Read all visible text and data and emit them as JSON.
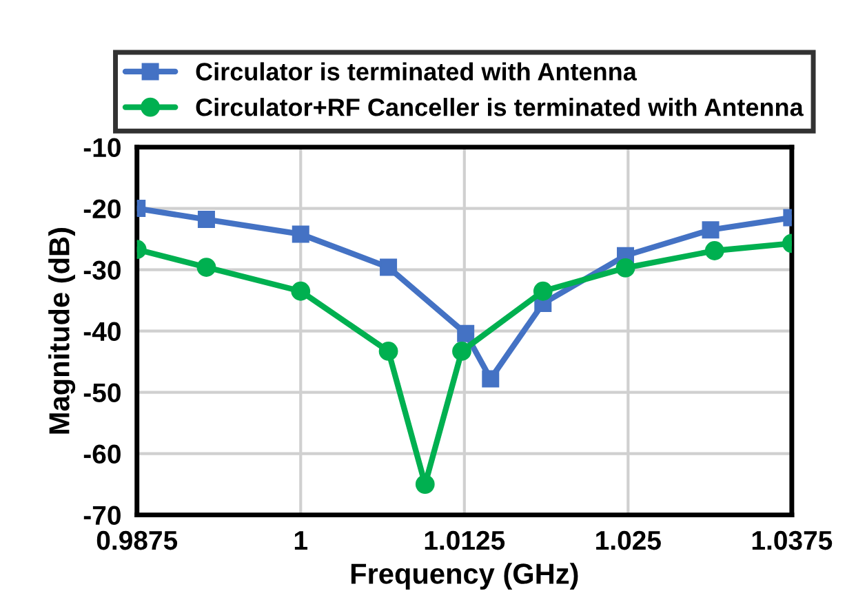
{
  "chart_data": {
    "type": "line",
    "xlabel": "Frequency (GHz)",
    "ylabel": "Magnitude (dB)",
    "series": [
      {
        "name": "Circulator is terminated with Antenna",
        "color": "#4472c4",
        "marker": "square",
        "x": [
          0.9875,
          0.9928,
          1.0,
          1.0067,
          1.0126,
          1.0145,
          1.0185,
          1.0248,
          1.0313,
          1.0375
        ],
        "values": [
          -20,
          -21.8,
          -24.2,
          -29.6,
          -40.4,
          -47.8,
          -35.5,
          -27.7,
          -23.5,
          -21.5
        ]
      },
      {
        "name": "Circulator+RF Canceller is terminated with Antenna",
        "color": "#00b050",
        "marker": "circle",
        "x": [
          0.9875,
          0.9928,
          1.0,
          1.0067,
          1.0095,
          1.0123,
          1.0185,
          1.0248,
          1.0316,
          1.0375
        ],
        "values": [
          -26.7,
          -29.6,
          -33.5,
          -43.3,
          -65.0,
          -43.3,
          -33.5,
          -29.7,
          -26.9,
          -25.7
        ]
      }
    ],
    "xlim": [
      0.9875,
      1.0375
    ],
    "xticks": [
      0.9875,
      1,
      1.0125,
      1.025,
      1.0375
    ],
    "ylim": [
      -70,
      -10
    ],
    "yticks": [
      -70,
      -60,
      -50,
      -40,
      -30,
      -20,
      -10
    ],
    "grid": true,
    "legend": "top",
    "line_style": "solid"
  }
}
